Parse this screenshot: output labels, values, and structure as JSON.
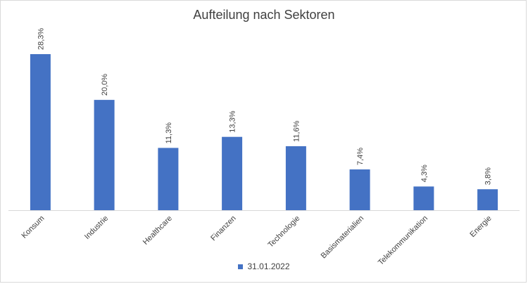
{
  "chart_data": {
    "type": "bar",
    "title": "Aufteilung nach Sektoren",
    "categories": [
      "Konsum",
      "Industrie",
      "Healthcare",
      "Finanzen",
      "Technologie",
      "Basismaterialien",
      "Telekommunikation",
      "Energie"
    ],
    "series": [
      {
        "name": "31.01.2022",
        "values": [
          28.3,
          20.0,
          11.3,
          13.3,
          11.6,
          7.4,
          4.3,
          3.8
        ],
        "labels": [
          "28,3%",
          "20,0%",
          "11,3%",
          "13,3%",
          "11,6%",
          "7,4%",
          "4,3%",
          "3,8%"
        ],
        "color": "#4472c4"
      }
    ],
    "ylim": [
      0,
      28.3
    ],
    "grid": false,
    "legend_position": "bottom"
  }
}
